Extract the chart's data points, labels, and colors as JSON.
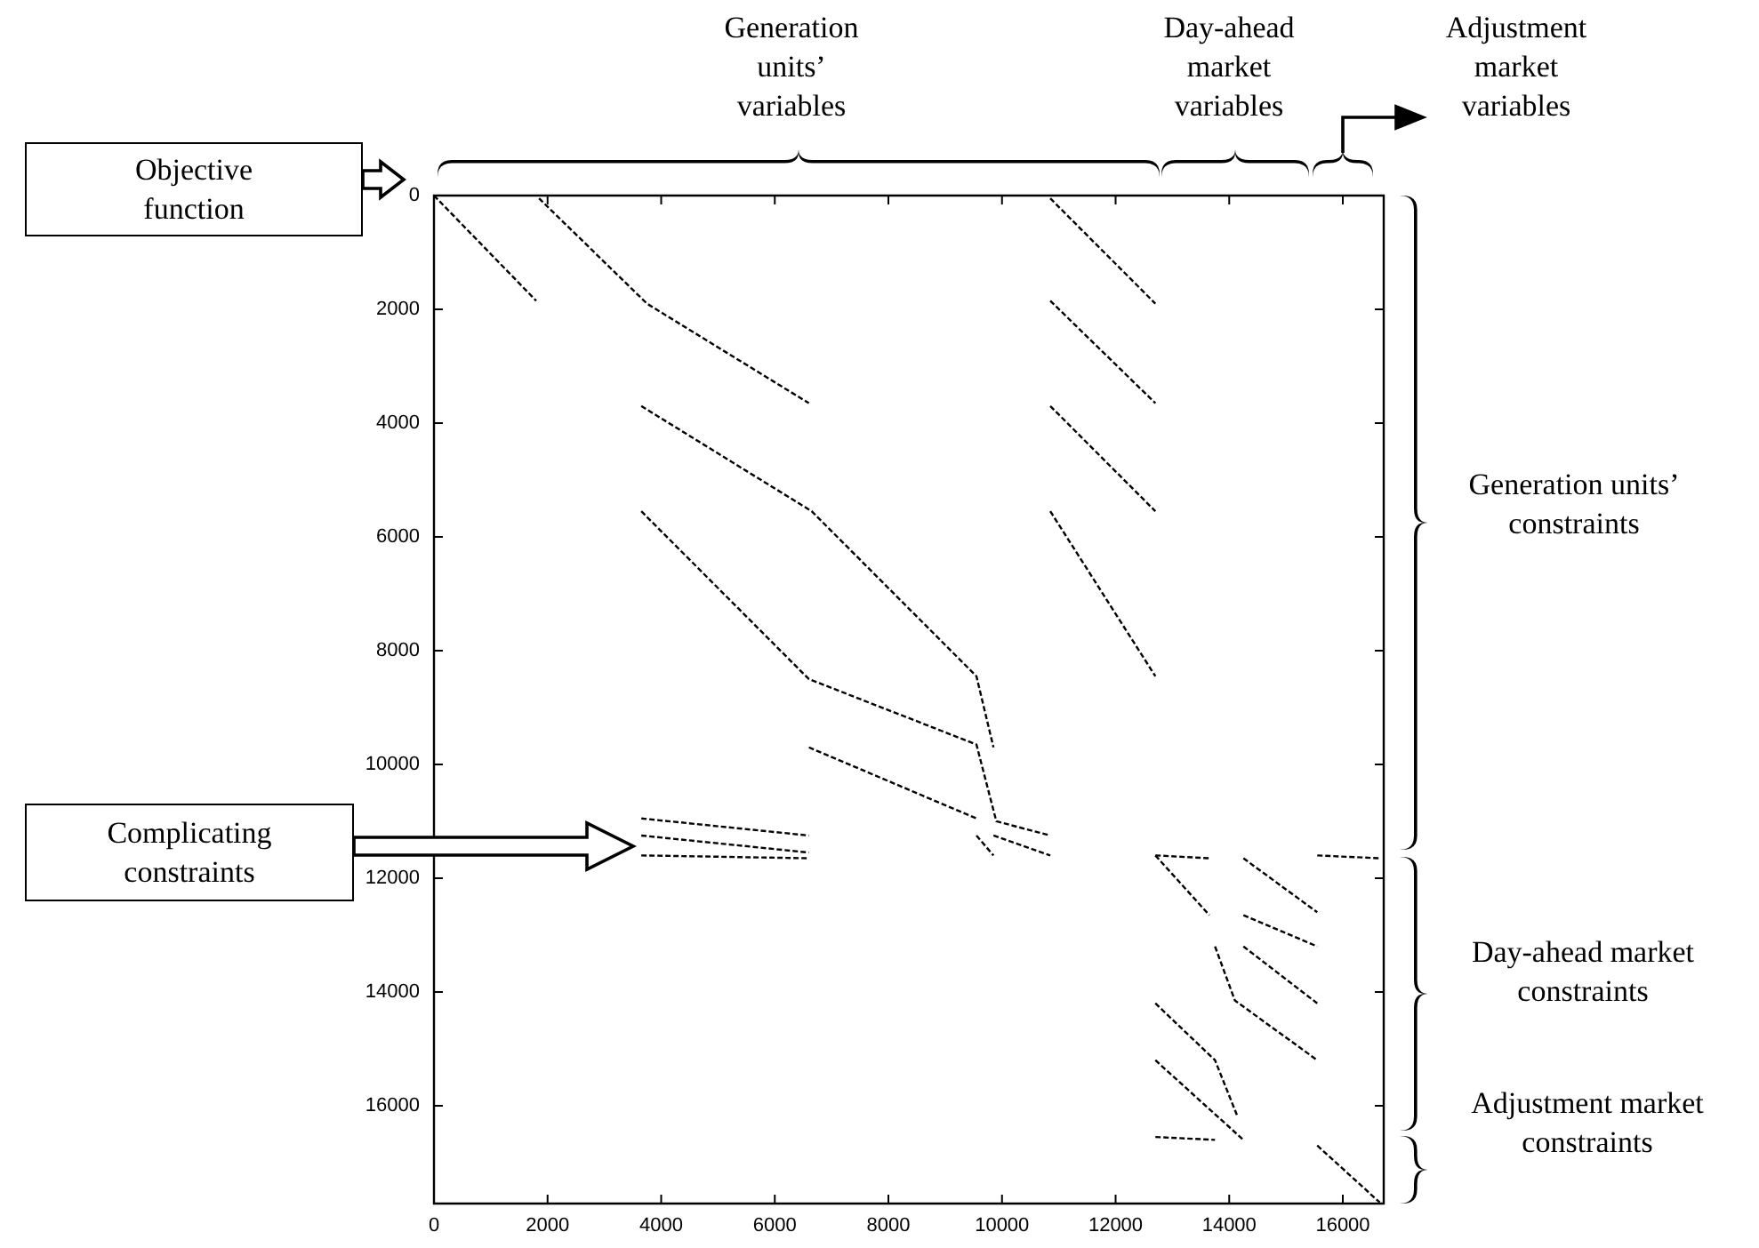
{
  "chart_data": {
    "type": "line",
    "line_style": "dashed",
    "marker": "none",
    "grid": false,
    "legend": false,
    "xlim": [
      0,
      16720
    ],
    "ylim": [
      17720,
      0
    ],
    "xticks": [
      0,
      2000,
      4000,
      6000,
      8000,
      10000,
      12000,
      14000,
      16000
    ],
    "yticks": [
      0,
      2000,
      4000,
      6000,
      8000,
      10000,
      12000,
      14000,
      16000
    ],
    "annotations": [
      "Generation units’ variables",
      "Day-ahead market variables",
      "Adjustment market variables",
      "Objective function",
      "Complicating constraints",
      "Generation units’ constraints",
      "Day-ahead market constraints",
      "Adjustment market constraints"
    ],
    "series": [
      {
        "color": "#000000",
        "x": [
          0,
          1800
        ],
        "values": [
          0,
          1850
        ]
      },
      {
        "color": "#000000",
        "x": [
          1850,
          3750,
          6600
        ],
        "values": [
          50,
          1900,
          3650
        ]
      },
      {
        "color": "#000000",
        "x": [
          3650,
          6650,
          9550,
          9850
        ],
        "values": [
          3700,
          5550,
          8450,
          9700
        ]
      },
      {
        "color": "#000000",
        "x": [
          3650,
          6600,
          9550,
          9900,
          10850
        ],
        "values": [
          5550,
          8500,
          9650,
          11000,
          11250
        ]
      },
      {
        "color": "#000000",
        "x": [
          6600,
          9550
        ],
        "values": [
          9700,
          10950
        ]
      },
      {
        "color": "#000000",
        "x": [
          10850,
          12700
        ],
        "values": [
          50,
          1900
        ]
      },
      {
        "color": "#000000",
        "x": [
          10850,
          12700
        ],
        "values": [
          1850,
          3650
        ]
      },
      {
        "color": "#000000",
        "x": [
          10850,
          12700
        ],
        "values": [
          3700,
          5550
        ]
      },
      {
        "color": "#000000",
        "x": [
          10850,
          12700
        ],
        "values": [
          5550,
          8450
        ]
      },
      {
        "color": "#000000",
        "x": [
          3650,
          6600
        ],
        "values": [
          10950,
          11250
        ]
      },
      {
        "color": "#000000",
        "x": [
          3650,
          6600
        ],
        "values": [
          11250,
          11550
        ]
      },
      {
        "color": "#000000",
        "x": [
          3650,
          6600
        ],
        "values": [
          11600,
          11650
        ]
      },
      {
        "color": "#000000",
        "x": [
          9550,
          9850
        ],
        "values": [
          11250,
          11600
        ]
      },
      {
        "color": "#000000",
        "x": [
          9850,
          10850
        ],
        "values": [
          11250,
          11600
        ]
      },
      {
        "color": "#000000",
        "x": [
          12700,
          13650
        ],
        "values": [
          11600,
          11650
        ]
      },
      {
        "color": "#000000",
        "x": [
          12700,
          13650
        ],
        "values": [
          11600,
          12650
        ]
      },
      {
        "color": "#000000",
        "x": [
          14250,
          15550
        ],
        "values": [
          11650,
          12600
        ]
      },
      {
        "color": "#000000",
        "x": [
          14250,
          15550
        ],
        "values": [
          12650,
          13200
        ]
      },
      {
        "color": "#000000",
        "x": [
          14250,
          15550
        ],
        "values": [
          13200,
          14200
        ]
      },
      {
        "color": "#000000",
        "x": [
          13750,
          14100,
          15550
        ],
        "values": [
          13200,
          14150,
          15200
        ]
      },
      {
        "color": "#000000",
        "x": [
          12700,
          13750,
          14150
        ],
        "values": [
          14200,
          15200,
          16200
        ]
      },
      {
        "color": "#000000",
        "x": [
          12700,
          13750,
          14250
        ],
        "values": [
          15200,
          16150,
          16600
        ]
      },
      {
        "color": "#000000",
        "x": [
          12700,
          13750
        ],
        "values": [
          16550,
          16600
        ]
      },
      {
        "color": "#000000",
        "x": [
          15550,
          16650
        ],
        "values": [
          11600,
          11650
        ]
      },
      {
        "color": "#000000",
        "x": [
          15550,
          16650
        ],
        "values": [
          16700,
          17700
        ]
      }
    ]
  }
}
